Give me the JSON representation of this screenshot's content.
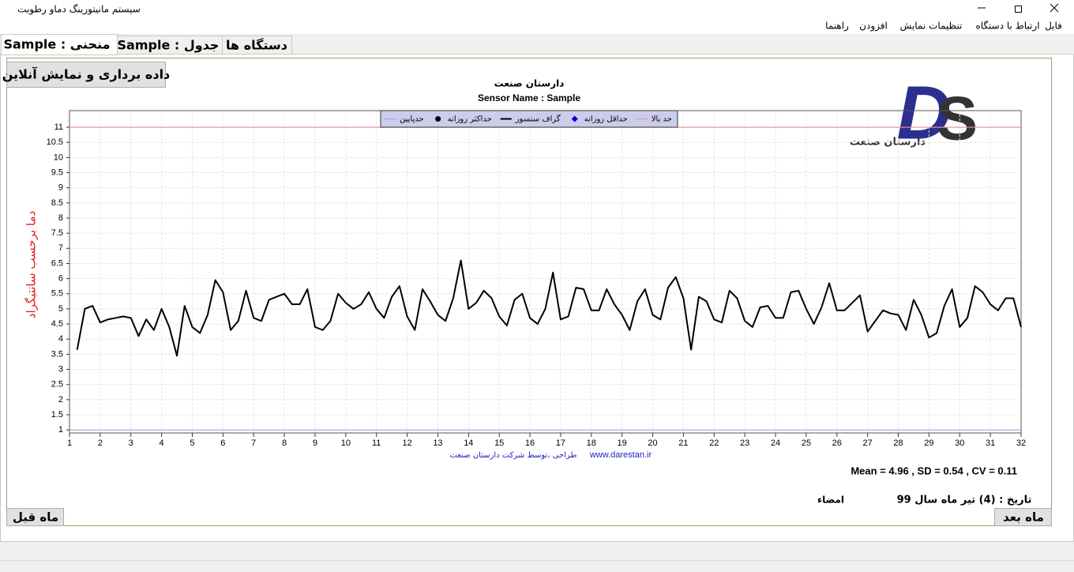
{
  "window": {
    "title": "سیستم مانیتورینگ دماو رطوبت"
  },
  "menu": [
    "فایل",
    "ارتباط با دستگاه",
    "تنظیمات نمایش",
    "افزودن",
    "راهنما"
  ],
  "tabs": [
    "منحنی : Sample",
    "جدول : Sample",
    "دستگاه ها"
  ],
  "buttons": {
    "online": "داده برداری و نمایش آنلاین",
    "previous": "ماه قبل",
    "next": "ماه بعد"
  },
  "logo": {
    "mark": "DS",
    "caption": "دارستان صنعت"
  },
  "chart_data": {
    "type": "line",
    "title": "دارستان صنعت",
    "subtitle": "Sensor Name : Sample",
    "y_label": "دما برحسب سانتیگراد",
    "xlim": [
      1,
      32
    ],
    "xticks": [
      1,
      2,
      3,
      4,
      5,
      6,
      7,
      8,
      9,
      10,
      11,
      12,
      13,
      14,
      15,
      16,
      17,
      18,
      19,
      20,
      21,
      22,
      23,
      24,
      25,
      26,
      27,
      28,
      29,
      30,
      31,
      32
    ],
    "ylim": [
      0.9,
      11.55
    ],
    "yticks": [
      1,
      1.5,
      2,
      2.5,
      3,
      3.5,
      4,
      4.5,
      5,
      5.5,
      6,
      6.5,
      7,
      7.5,
      8,
      8.5,
      9,
      9.5,
      10,
      10.5,
      11
    ],
    "grid": true,
    "series": [
      {
        "name": "حد بالا",
        "color": "#f08c8c",
        "marker": "line",
        "value": 11
      },
      {
        "name": "حداقل روزانه",
        "color": "#0000cc",
        "marker": "diamond"
      },
      {
        "name": "گراف سنسور",
        "color": "#000000",
        "marker": "line",
        "x": [
          1.25,
          1.5,
          1.75,
          2,
          2.25,
          2.5,
          2.75,
          3,
          3.25,
          3.5,
          3.75,
          4,
          4.25,
          4.5,
          4.75,
          5,
          5.25,
          5.5,
          5.75,
          6,
          6.25,
          6.5,
          6.75,
          7,
          7.25,
          7.5,
          7.75,
          8,
          8.25,
          8.5,
          8.75,
          9,
          9.25,
          9.5,
          9.75,
          10,
          10.25,
          10.5,
          10.75,
          11,
          11.25,
          11.5,
          11.75,
          12,
          12.25,
          12.5,
          12.75,
          13,
          13.25,
          13.5,
          13.75,
          14,
          14.25,
          14.5,
          14.75,
          15,
          15.25,
          15.5,
          15.75,
          16,
          16.25,
          16.5,
          16.75,
          17,
          17.25,
          17.5,
          17.75,
          18,
          18.25,
          18.5,
          18.75,
          19,
          19.25,
          19.5,
          19.75,
          20,
          20.25,
          20.5,
          20.75,
          21,
          21.25,
          21.5,
          21.75,
          22,
          22.25,
          22.5,
          22.75,
          23,
          23.25,
          23.5,
          23.75,
          24,
          24.25,
          24.5,
          24.75,
          25,
          25.25,
          25.5,
          25.75,
          26,
          26.25,
          26.5,
          26.75,
          27,
          27.25,
          27.5,
          27.75,
          28,
          28.25,
          28.5,
          28.75,
          29,
          29.25,
          29.5,
          29.75,
          30,
          30.25,
          30.5,
          30.75,
          31,
          31.25,
          31.5,
          31.75,
          32
        ],
        "values": [
          3.65,
          5.0,
          5.1,
          4.55,
          4.65,
          4.7,
          4.75,
          4.7,
          4.1,
          4.65,
          4.3,
          5.0,
          4.4,
          3.45,
          5.1,
          4.4,
          4.2,
          4.8,
          5.95,
          5.55,
          4.3,
          4.6,
          5.6,
          4.7,
          4.6,
          5.3,
          5.4,
          5.5,
          5.15,
          5.15,
          5.65,
          4.4,
          4.3,
          4.6,
          5.5,
          5.2,
          5.0,
          5.15,
          5.55,
          5.0,
          4.7,
          5.4,
          5.75,
          4.75,
          4.3,
          5.65,
          5.25,
          4.8,
          4.6,
          5.35,
          6.6,
          5.0,
          5.2,
          5.6,
          5.35,
          4.75,
          4.45,
          5.3,
          5.5,
          4.7,
          4.5,
          5.0,
          6.2,
          4.65,
          4.75,
          5.7,
          5.65,
          4.95,
          4.95,
          5.65,
          5.15,
          4.8,
          4.3,
          5.25,
          5.65,
          4.8,
          4.65,
          5.7,
          6.05,
          5.35,
          3.65,
          5.4,
          5.25,
          4.65,
          4.55,
          5.6,
          5.35,
          4.6,
          4.4,
          5.05,
          5.1,
          4.7,
          4.7,
          5.55,
          5.6,
          5.0,
          4.5,
          5.05,
          5.85,
          4.95,
          4.95,
          5.2,
          5.45,
          4.25,
          4.6,
          4.95,
          4.85,
          4.8,
          4.3,
          5.3,
          4.8,
          4.05,
          4.2,
          5.1,
          5.65,
          4.4,
          4.7,
          5.75,
          5.55,
          5.15,
          4.95,
          5.35,
          5.35,
          4.4
        ]
      },
      {
        "name": "حداکثر روزانه",
        "color": "#000000",
        "marker": "circle"
      },
      {
        "name": "حدپایین",
        "color": "#a0a0d0",
        "marker": "line",
        "value": 1
      }
    ]
  },
  "credit": {
    "text": "طراحی ،توسط شرکت  دارستان صنعت",
    "url": "www.darestan.ir"
  },
  "stats": "Mean = 4.96 ,  SD = 0.54 ,  CV = 0.11",
  "date": "تاریخ : (4) تیر ماه سال 99",
  "signature": "امضاء"
}
